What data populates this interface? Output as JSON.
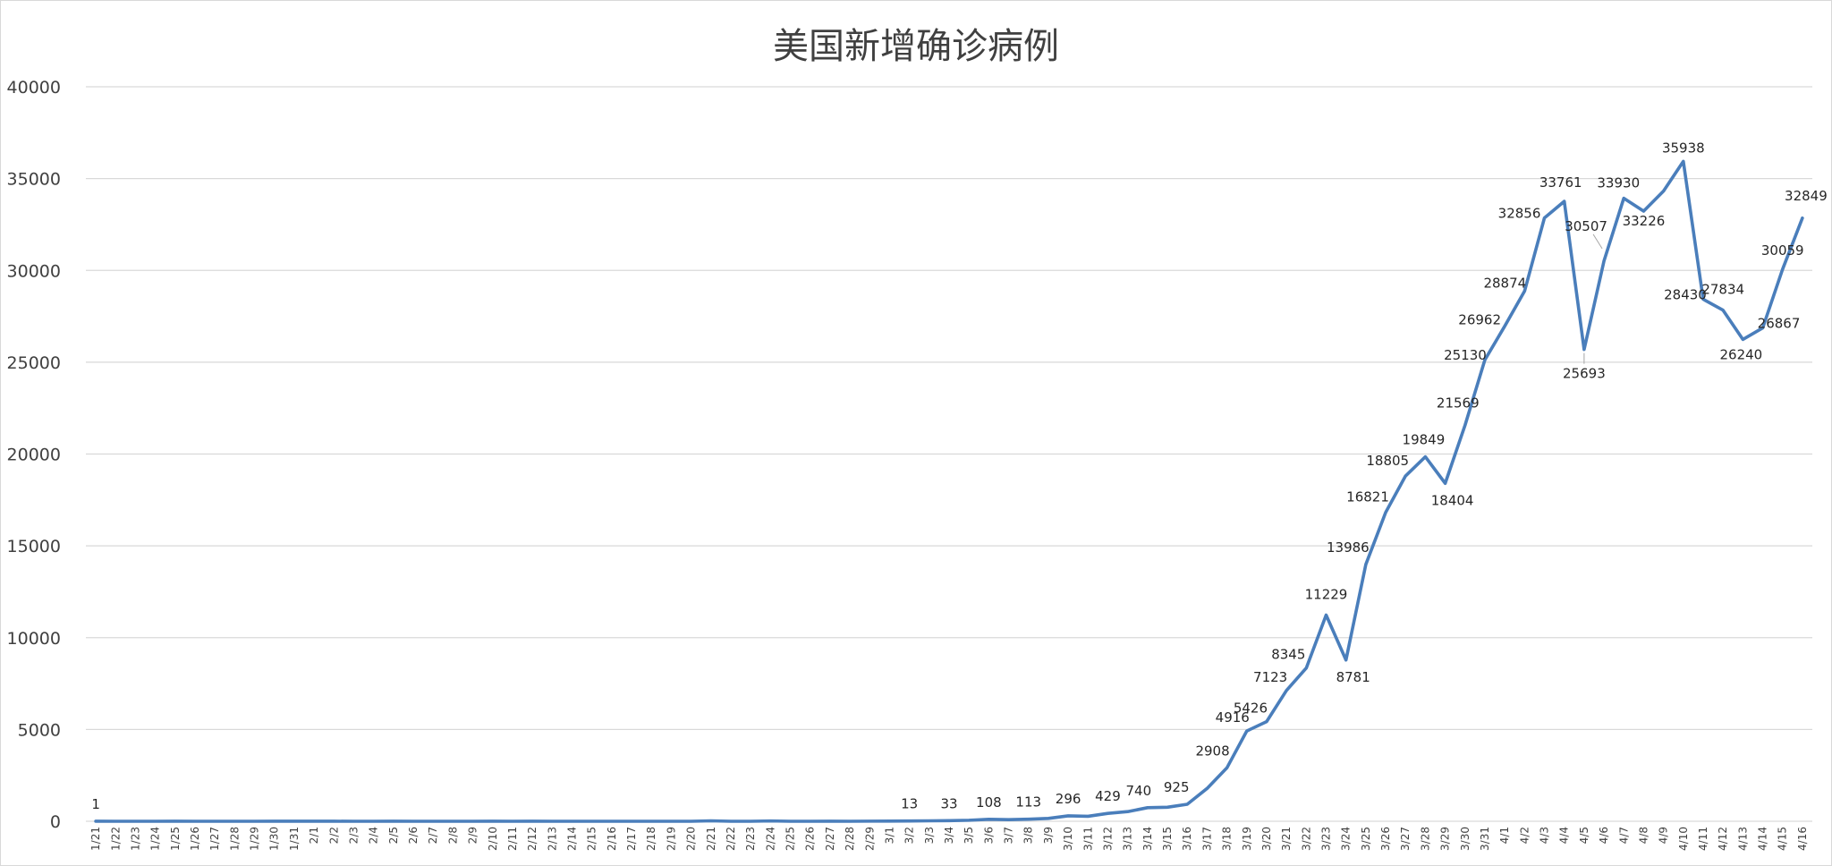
{
  "chart_data": {
    "type": "line",
    "title": "美国新增确诊病例",
    "xlabel": "",
    "ylabel": "",
    "ylim": [
      0,
      40000
    ],
    "yticks": [
      0,
      5000,
      10000,
      15000,
      20000,
      25000,
      30000,
      35000,
      40000
    ],
    "grid": true,
    "legend": "none",
    "line_color": "#4a7ebb",
    "x": [
      "1/21",
      "1/22",
      "1/23",
      "1/24",
      "1/25",
      "1/26",
      "1/27",
      "1/28",
      "1/29",
      "1/30",
      "1/31",
      "2/1",
      "2/2",
      "2/3",
      "2/4",
      "2/5",
      "2/6",
      "2/7",
      "2/8",
      "2/9",
      "2/10",
      "2/11",
      "2/12",
      "2/13",
      "2/14",
      "2/15",
      "2/16",
      "2/17",
      "2/18",
      "2/19",
      "2/20",
      "2/21",
      "2/22",
      "2/23",
      "2/24",
      "2/25",
      "2/26",
      "2/27",
      "2/28",
      "2/29",
      "3/1",
      "3/2",
      "3/3",
      "3/4",
      "3/5",
      "3/6",
      "3/7",
      "3/8",
      "3/9",
      "3/10",
      "3/11",
      "3/12",
      "3/13",
      "3/14",
      "3/15",
      "3/16",
      "3/17",
      "3/18",
      "3/19",
      "3/20",
      "3/21",
      "3/22",
      "3/23",
      "3/24",
      "3/25",
      "3/26",
      "3/27",
      "3/28",
      "3/29",
      "3/30",
      "3/31",
      "4/1",
      "4/2",
      "4/3",
      "4/4",
      "4/5",
      "4/6",
      "4/7",
      "4/8",
      "4/9",
      "4/10",
      "4/11",
      "4/12",
      "4/13",
      "4/14",
      "4/15",
      "4/16"
    ],
    "values": [
      1,
      0,
      0,
      0,
      1,
      0,
      0,
      0,
      0,
      1,
      1,
      1,
      1,
      0,
      0,
      1,
      0,
      0,
      0,
      0,
      1,
      0,
      1,
      0,
      0,
      0,
      0,
      0,
      0,
      0,
      0,
      25,
      0,
      0,
      18,
      0,
      0,
      1,
      0,
      6,
      9,
      13,
      25,
      33,
      55,
      108,
      90,
      113,
      156,
      296,
      271,
      429,
      525,
      740,
      763,
      925,
      1786,
      2908,
      4916,
      5426,
      7123,
      8345,
      11229,
      8781,
      13986,
      16821,
      18805,
      19849,
      18404,
      21569,
      25130,
      26962,
      28874,
      32856,
      33761,
      25693,
      30507,
      33930,
      33226,
      34317,
      35938,
      28430,
      27834,
      26240,
      26867,
      30059,
      32849
    ],
    "data_labels": [
      {
        "x": "1/21",
        "text": "1"
      },
      {
        "x": "3/2",
        "text": "13"
      },
      {
        "x": "3/4",
        "text": "33"
      },
      {
        "x": "3/6",
        "text": "108"
      },
      {
        "x": "3/8",
        "text": "113"
      },
      {
        "x": "3/10",
        "text": "296"
      },
      {
        "x": "3/12",
        "text": "429"
      },
      {
        "x": "3/14",
        "text": "740"
      },
      {
        "x": "3/16",
        "text": "925"
      },
      {
        "x": "3/18",
        "text": "2908"
      },
      {
        "x": "3/19",
        "text": "4916"
      },
      {
        "x": "3/20",
        "text": "5426"
      },
      {
        "x": "3/21",
        "text": "7123"
      },
      {
        "x": "3/22",
        "text": "8345"
      },
      {
        "x": "3/23",
        "text": "11229"
      },
      {
        "x": "3/24",
        "text": "8781"
      },
      {
        "x": "3/25",
        "text": "13986"
      },
      {
        "x": "3/26",
        "text": "16821"
      },
      {
        "x": "3/27",
        "text": "18805"
      },
      {
        "x": "3/28",
        "text": "19849"
      },
      {
        "x": "3/29",
        "text": "18404"
      },
      {
        "x": "3/30",
        "text": "21569"
      },
      {
        "x": "3/31",
        "text": "25130"
      },
      {
        "x": "4/1",
        "text": "26962"
      },
      {
        "x": "4/2",
        "text": "28874"
      },
      {
        "x": "4/3",
        "text": "32856"
      },
      {
        "x": "4/4",
        "text": "33761"
      },
      {
        "x": "4/5",
        "text": "25693"
      },
      {
        "x": "4/6",
        "text": "30507"
      },
      {
        "x": "4/7",
        "text": "33930"
      },
      {
        "x": "4/8",
        "text": "33226"
      },
      {
        "x": "4/10",
        "text": "35938"
      },
      {
        "x": "4/11",
        "text": "28430"
      },
      {
        "x": "4/12",
        "text": "27834"
      },
      {
        "x": "4/13",
        "text": "26240"
      },
      {
        "x": "4/14",
        "text": "26867"
      },
      {
        "x": "4/15",
        "text": "30059"
      },
      {
        "x": "4/16",
        "text": "32849"
      }
    ]
  }
}
